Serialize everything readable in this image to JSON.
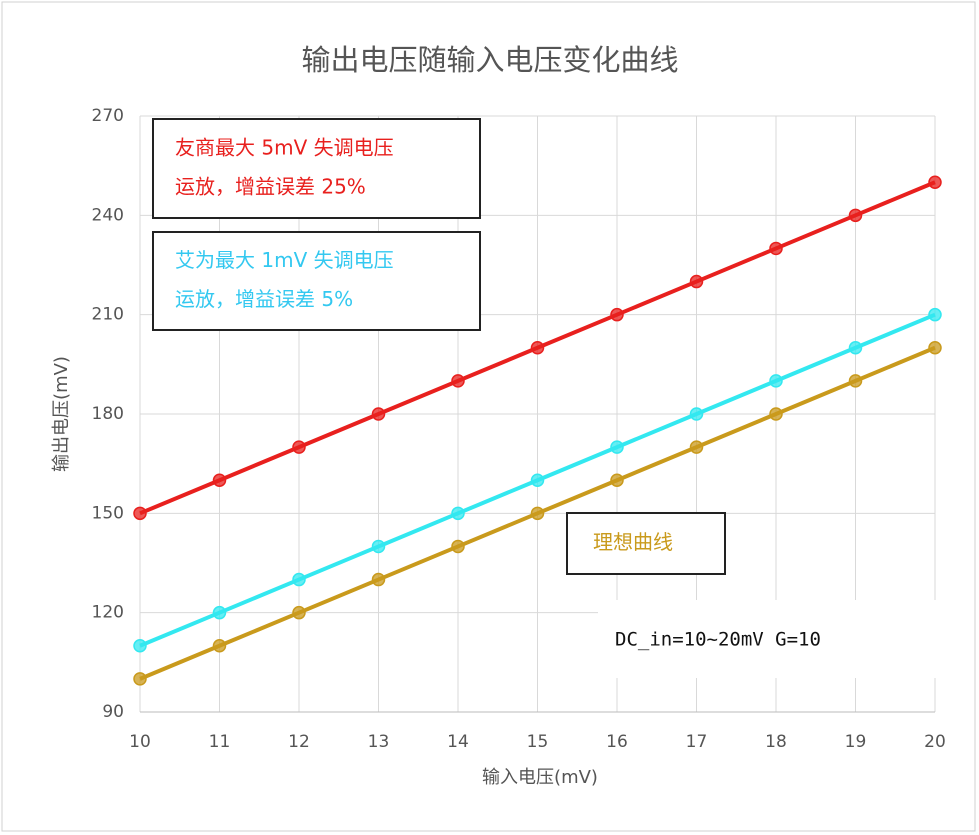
{
  "chart_data": {
    "type": "line",
    "title": "输出电压随输入电压变化曲线",
    "x_label": "输入电压(mV)",
    "y_label": "输出电压(mV)",
    "x": [
      10,
      11,
      12,
      13,
      14,
      15,
      16,
      17,
      18,
      19,
      20
    ],
    "xlim": [
      10,
      20
    ],
    "xticks": [
      10,
      11,
      12,
      13,
      14,
      15,
      16,
      17,
      18,
      19,
      20
    ],
    "ylim": [
      90,
      270
    ],
    "yticks": [
      90,
      120,
      150,
      180,
      210,
      240,
      270
    ],
    "grid": true,
    "series": [
      {
        "color": "#e8201e",
        "values": [
          150,
          160,
          170,
          180,
          190,
          200,
          210,
          220,
          230,
          240,
          250
        ]
      },
      {
        "color": "#33e8f0",
        "values": [
          110,
          120,
          130,
          140,
          150,
          160,
          170,
          180,
          190,
          200,
          210
        ]
      },
      {
        "color": "#c99a1c",
        "values": [
          100,
          110,
          120,
          130,
          140,
          150,
          160,
          170,
          180,
          190,
          200
        ]
      }
    ],
    "annotations": [
      {
        "lines": [
          "友商最大 5mV 失调电压",
          "运放，增益误差 25%"
        ],
        "color": "#e8201e"
      },
      {
        "lines": [
          "艾为最大 1mV 失调电压",
          "运放，增益误差 5%"
        ],
        "color": "#33c8f0"
      },
      {
        "lines": [
          "理想曲线"
        ],
        "color": "#c99a1c"
      }
    ],
    "note": "DC_in=10~20mV G=10"
  }
}
